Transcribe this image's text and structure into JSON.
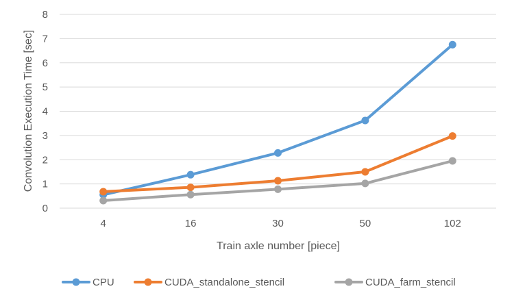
{
  "chart_data": {
    "type": "line",
    "title": "",
    "xlabel": "Train axle number [piece]",
    "ylabel": "Convolution Execution Time [sec]",
    "categories": [
      "4",
      "16",
      "30",
      "50",
      "102"
    ],
    "ylim": [
      0,
      8
    ],
    "yticks": [
      "0",
      "1",
      "2",
      "3",
      "4",
      "5",
      "6",
      "7",
      "8"
    ],
    "grid": true,
    "legend_position": "bottom",
    "series": [
      {
        "name": "CPU",
        "color": "#5B9BD5",
        "values": [
          0.55,
          1.38,
          2.28,
          3.62,
          6.75
        ]
      },
      {
        "name": "CUDA_standalone_stencil",
        "color": "#ED7D31",
        "values": [
          0.68,
          0.86,
          1.13,
          1.5,
          2.98
        ]
      },
      {
        "name": "CUDA_farm_stencil",
        "color": "#A5A5A5",
        "values": [
          0.31,
          0.56,
          0.78,
          1.02,
          1.95
        ]
      }
    ]
  }
}
